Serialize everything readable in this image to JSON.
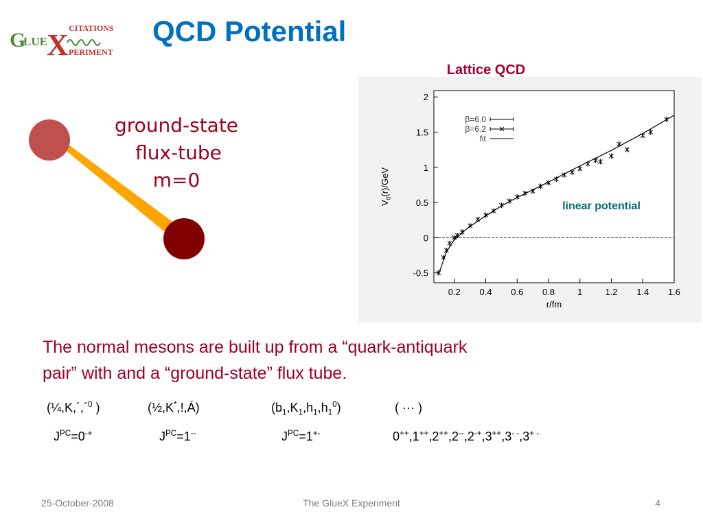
{
  "logo": {
    "g": "G",
    "lue": "LUE",
    "x": "X",
    "citations": "CITATIONS",
    "periment": "PERIMENT"
  },
  "title": "QCD Potential",
  "plot_caption": "Lattice QCD",
  "flux_tube": {
    "lines": [
      "ground-state",
      "flux-tube",
      "m=0"
    ]
  },
  "plot": {
    "xlabel": "r/fm",
    "ylabel": [
      {
        "text": "V"
      },
      {
        "text": "0",
        "pos": "sub"
      },
      {
        "text": "(r)/GeV"
      }
    ],
    "annotation": "linear potential",
    "xlim": [
      0.07,
      1.6
    ],
    "ylim": [
      -0.64,
      2.09
    ],
    "xticks": [
      0.2,
      0.4,
      0.6,
      0.8,
      1,
      1.2,
      1.4,
      1.6
    ],
    "yticks": [
      -0.5,
      0,
      0.5,
      1,
      1.5,
      2
    ],
    "series": [
      {
        "name": "β=6.0",
        "x": [
          0.1,
          0.15,
          0.2,
          0.25,
          0.35,
          0.45,
          0.55,
          0.65,
          0.75,
          0.85,
          0.95,
          1.05,
          1.13,
          1.25,
          1.3,
          1.45,
          1.55
        ],
        "values": [
          -0.5,
          -0.18,
          0.0,
          0.08,
          0.26,
          0.38,
          0.52,
          0.63,
          0.73,
          0.83,
          0.93,
          1.05,
          1.08,
          1.33,
          1.25,
          1.5,
          1.68
        ]
      },
      {
        "name": "β=6.2",
        "x": [
          0.13,
          0.17,
          0.22,
          0.3,
          0.4,
          0.5,
          0.6,
          0.7,
          0.8,
          0.9,
          1.0,
          1.1,
          1.2,
          1.4
        ],
        "values": [
          -0.28,
          -0.08,
          0.03,
          0.17,
          0.32,
          0.46,
          0.58,
          0.66,
          0.78,
          0.89,
          0.98,
          1.1,
          1.16,
          1.45
        ]
      }
    ],
    "fit": {
      "name": "fit",
      "x": [
        0.1,
        0.15,
        0.2,
        0.25,
        0.3,
        0.4,
        0.5,
        0.6,
        0.8,
        1.0,
        1.2,
        1.4,
        1.6
      ],
      "values": [
        -0.52,
        -0.2,
        -0.03,
        0.07,
        0.16,
        0.31,
        0.45,
        0.57,
        0.79,
        1.02,
        1.24,
        1.48,
        1.74
      ]
    }
  },
  "body": {
    "lines": [
      "The normal mesons are built up from a “quark-antiquark",
      "pair” with and a “ground-state” flux tube."
    ]
  },
  "formulas": [
    [
      [
        {
          "text": "(¼,K,´,´"
        },
        {
          "text": "0",
          "pos": "sup"
        },
        {
          "text": " )"
        }
      ],
      [
        {
          "text": "(½,K"
        },
        {
          "text": "*",
          "pos": "sup"
        },
        {
          "text": ",!,Á)"
        }
      ],
      [
        {
          "text": "(b"
        },
        {
          "text": "1",
          "pos": "sub"
        },
        {
          "text": ",K"
        },
        {
          "text": "1",
          "pos": "sub"
        },
        {
          "text": ",h"
        },
        {
          "text": "1",
          "pos": "sub"
        },
        {
          "text": ",h"
        },
        {
          "text": "1",
          "pos": "sub"
        },
        {
          "text": "0",
          "pos": "sup"
        },
        {
          "text": ")"
        }
      ],
      [
        {
          "text": "( ··· )"
        }
      ]
    ],
    [
      [
        {
          "text": "J"
        },
        {
          "text": "PC",
          "pos": "sup"
        },
        {
          "text": "=0"
        },
        {
          "text": "-+",
          "pos": "sup"
        }
      ],
      [
        {
          "text": "J"
        },
        {
          "text": "PC",
          "pos": "sup"
        },
        {
          "text": "=1"
        },
        {
          "text": "--",
          "pos": "sup"
        }
      ],
      [
        {
          "text": "J"
        },
        {
          "text": "PC",
          "pos": "sup"
        },
        {
          "text": "=1"
        },
        {
          "text": "+-",
          "pos": "sup"
        }
      ],
      [
        {
          "text": "0"
        },
        {
          "text": "++",
          "pos": "sup"
        },
        {
          "text": ",1"
        },
        {
          "text": "++",
          "pos": "sup"
        },
        {
          "text": ",2"
        },
        {
          "text": "++",
          "pos": "sup"
        },
        {
          "text": ",2"
        },
        {
          "text": "--",
          "pos": "sup"
        },
        {
          "text": ",2"
        },
        {
          "text": "-+",
          "pos": "sup"
        },
        {
          "text": ",3"
        },
        {
          "text": "++",
          "pos": "sup"
        },
        {
          "text": ",3"
        },
        {
          "text": "- -",
          "pos": "sup"
        },
        {
          "text": ",3"
        },
        {
          "text": "+ -",
          "pos": "sup"
        }
      ]
    ]
  ],
  "footer": {
    "date": "25-October-2008",
    "center": "The GlueX Experiment",
    "page": "4"
  }
}
